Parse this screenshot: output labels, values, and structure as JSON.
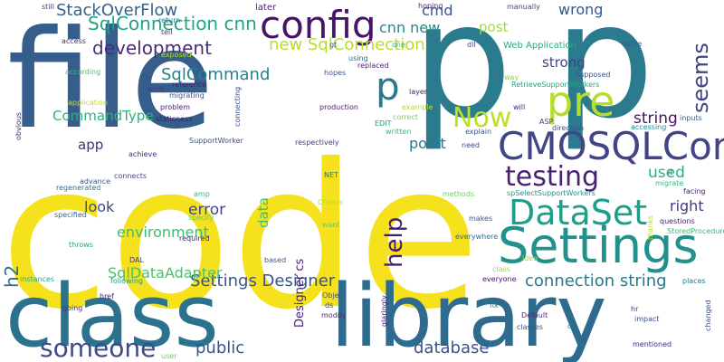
{
  "words": [
    {
      "text": "code",
      "color": "#f5e11c"
    },
    {
      "text": "file",
      "color": "#365e8c"
    },
    {
      "text": "p",
      "color": "#2b7b8e"
    },
    {
      "text": "p",
      "color": "#2b7b8e"
    },
    {
      "text": "class",
      "color": "#2c728e"
    },
    {
      "text": "library",
      "color": "#2f6b8e"
    },
    {
      "text": "config",
      "color": "#481467"
    },
    {
      "text": "Settings",
      "color": "#21918c"
    },
    {
      "text": "CMOSQLConn",
      "color": "#414487"
    },
    {
      "text": "DataSet",
      "color": "#1f9e89"
    },
    {
      "text": "pre",
      "color": "#b5de2b"
    },
    {
      "text": "p",
      "color": "#2a788e"
    },
    {
      "text": "testing",
      "color": "#482173"
    },
    {
      "text": "Now",
      "color": "#bddf26"
    },
    {
      "text": "someone",
      "color": "#3e4a89"
    },
    {
      "text": "public",
      "color": "#3b528b"
    },
    {
      "text": "database",
      "color": "#3a548c"
    },
    {
      "text": "connection string",
      "color": "#2a788e"
    },
    {
      "text": "Settings Designer",
      "color": "#3b528b"
    },
    {
      "text": "StackOverFlow",
      "color": "#33628d"
    },
    {
      "text": "development",
      "color": "#472d7b"
    },
    {
      "text": "SqlConnection cnn",
      "color": "#20a486"
    },
    {
      "text": "new SqlConnection",
      "color": "#b8de29"
    },
    {
      "text": "cnn new",
      "color": "#24878e"
    },
    {
      "text": "cmd",
      "color": "#3b528b"
    },
    {
      "text": "wrong",
      "color": "#38588c"
    },
    {
      "text": "post",
      "color": "#a8db34"
    },
    {
      "text": "strong",
      "color": "#404387"
    },
    {
      "text": "SqlCommand",
      "color": "#26818e"
    },
    {
      "text": "CommandType",
      "color": "#2db27d"
    },
    {
      "text": "string",
      "color": "#471365"
    },
    {
      "text": "point",
      "color": "#2a768e"
    },
    {
      "text": "app",
      "color": "#46307e"
    },
    {
      "text": "look",
      "color": "#3e4989"
    },
    {
      "text": "error",
      "color": "#404688"
    },
    {
      "text": "environment",
      "color": "#3dbc74"
    },
    {
      "text": "SqlDataAdapter",
      "color": "#4cc26c"
    },
    {
      "text": "right",
      "color": "#443983"
    },
    {
      "text": "used",
      "color": "#29af7f"
    },
    {
      "text": "later",
      "color": "#482576"
    },
    {
      "text": "seems",
      "color": "#414487"
    },
    {
      "text": "help",
      "color": "#481d6f"
    },
    {
      "text": "h2",
      "color": "#2e6d8e"
    },
    {
      "text": "data",
      "color": "#46c06f"
    },
    {
      "text": "Designer cs",
      "color": "#482677"
    },
    {
      "text": "still",
      "color": "#3f4889"
    },
    {
      "text": "access",
      "color": "#482878"
    },
    {
      "text": "according",
      "color": "#46c06f"
    },
    {
      "text": "application",
      "color": "#c2df23"
    },
    {
      "text": "obvious",
      "color": "#472c7a"
    },
    {
      "text": "exposed",
      "color": "#b8de29"
    },
    {
      "text": "return",
      "color": "#2a788e"
    },
    {
      "text": "tell",
      "color": "#472f7d"
    },
    {
      "text": "reference",
      "color": "#481b6d"
    },
    {
      "text": "work",
      "color": "#433e85"
    },
    {
      "text": "migrating",
      "color": "#39558c"
    },
    {
      "text": "problem",
      "color": "#482475"
    },
    {
      "text": "staticness",
      "color": "#481769"
    },
    {
      "text": "SupportWorker",
      "color": "#3b518b"
    },
    {
      "text": "achieve",
      "color": "#472a7a"
    },
    {
      "text": "connects",
      "color": "#3f4889"
    },
    {
      "text": "regenerated",
      "color": "#2d718e"
    },
    {
      "text": "advance",
      "color": "#3a548c"
    },
    {
      "text": "specified",
      "color": "#31668e"
    },
    {
      "text": "specify",
      "color": "#6ccd5a"
    },
    {
      "text": "required",
      "color": "#482071"
    },
    {
      "text": "throws",
      "color": "#1fa088"
    },
    {
      "text": "DAL",
      "color": "#472f7d"
    },
    {
      "text": "following",
      "color": "#1f998a"
    },
    {
      "text": "instances",
      "color": "#25ac82"
    },
    {
      "text": "href",
      "color": "#481f70"
    },
    {
      "text": "going",
      "color": "#46327e"
    },
    {
      "text": "user",
      "color": "#6ccd5a"
    },
    {
      "text": "amp",
      "color": "#32b67a"
    },
    {
      "text": "based",
      "color": "#34608d"
    },
    {
      "text": "Object",
      "color": "#39568c"
    },
    {
      "text": "ds",
      "color": "#404588"
    },
    {
      "text": "modify",
      "color": "#472d7b"
    },
    {
      "text": "glaringly",
      "color": "#481c6e"
    },
    {
      "text": "Cheers",
      "color": "#b5de2b"
    },
    {
      "text": "want",
      "color": "#5ec962"
    },
    {
      "text": "NET",
      "color": "#2d708e"
    },
    {
      "text": "connecting",
      "color": "#3e4a89"
    },
    {
      "text": "hopes",
      "color": "#39568c"
    },
    {
      "text": "using",
      "color": "#2d708e"
    },
    {
      "text": "replaced",
      "color": "#481f70"
    },
    {
      "text": "gt",
      "color": "#31688e"
    },
    {
      "text": "production",
      "color": "#481b6d"
    },
    {
      "text": "layer",
      "color": "#482374"
    },
    {
      "text": "example",
      "color": "#b5de2b"
    },
    {
      "text": "correct",
      "color": "#7ad151"
    },
    {
      "text": "EDIT",
      "color": "#1fa187"
    },
    {
      "text": "written",
      "color": "#37b878"
    },
    {
      "text": "respectively",
      "color": "#453882"
    },
    {
      "text": "explain",
      "color": "#3a548c"
    },
    {
      "text": "need",
      "color": "#3e4a89"
    },
    {
      "text": "methods",
      "color": "#6ccd5a"
    },
    {
      "text": "makes",
      "color": "#3b528b"
    },
    {
      "text": "everywhere",
      "color": "#2c738e"
    },
    {
      "text": "everyone",
      "color": "#471164"
    },
    {
      "text": "class",
      "color": "#9fda3a"
    },
    {
      "text": "fix",
      "color": "#2c728e"
    },
    {
      "text": "Default",
      "color": "#472f7d"
    },
    {
      "text": "classes",
      "color": "#3b518b"
    },
    {
      "text": "da",
      "color": "#2d708e"
    },
    {
      "text": "one",
      "color": "#31b57b"
    },
    {
      "text": "hoping",
      "color": "#482878"
    },
    {
      "text": "manually",
      "color": "#3f4788"
    },
    {
      "text": "dll",
      "color": "#3e4989"
    },
    {
      "text": "Web Application",
      "color": "#26ad81"
    },
    {
      "text": "way",
      "color": "#8bd646"
    },
    {
      "text": "RetrieveSupportWorkers",
      "color": "#20a386"
    },
    {
      "text": "supposed",
      "color": "#3b528b"
    },
    {
      "text": "will",
      "color": "#482979"
    },
    {
      "text": "ASP",
      "color": "#3f4889"
    },
    {
      "text": "direction",
      "color": "#3c508b"
    },
    {
      "text": "accessing",
      "color": "#25848e"
    },
    {
      "text": "inputs",
      "color": "#33638d"
    },
    {
      "text": "table",
      "color": "#38588c"
    },
    {
      "text": "lt",
      "color": "#2c718e"
    },
    {
      "text": "migrate",
      "color": "#35b779"
    },
    {
      "text": "facing",
      "color": "#481d6f"
    },
    {
      "text": "spSelectSupportWorkers",
      "color": "#1f948c"
    },
    {
      "text": "questions",
      "color": "#481a6c"
    },
    {
      "text": "StoredProcedure",
      "color": "#3aba76"
    },
    {
      "text": "idea",
      "color": "#9dd93b"
    },
    {
      "text": "places",
      "color": "#2c728e"
    },
    {
      "text": "hr",
      "color": "#46307e"
    },
    {
      "text": "impact",
      "color": "#3d4e8a"
    },
    {
      "text": "changed",
      "color": "#3b528b"
    },
    {
      "text": "mentioned",
      "color": "#482979"
    },
    {
      "text": "thanks",
      "color": "#b8de29"
    }
  ]
}
